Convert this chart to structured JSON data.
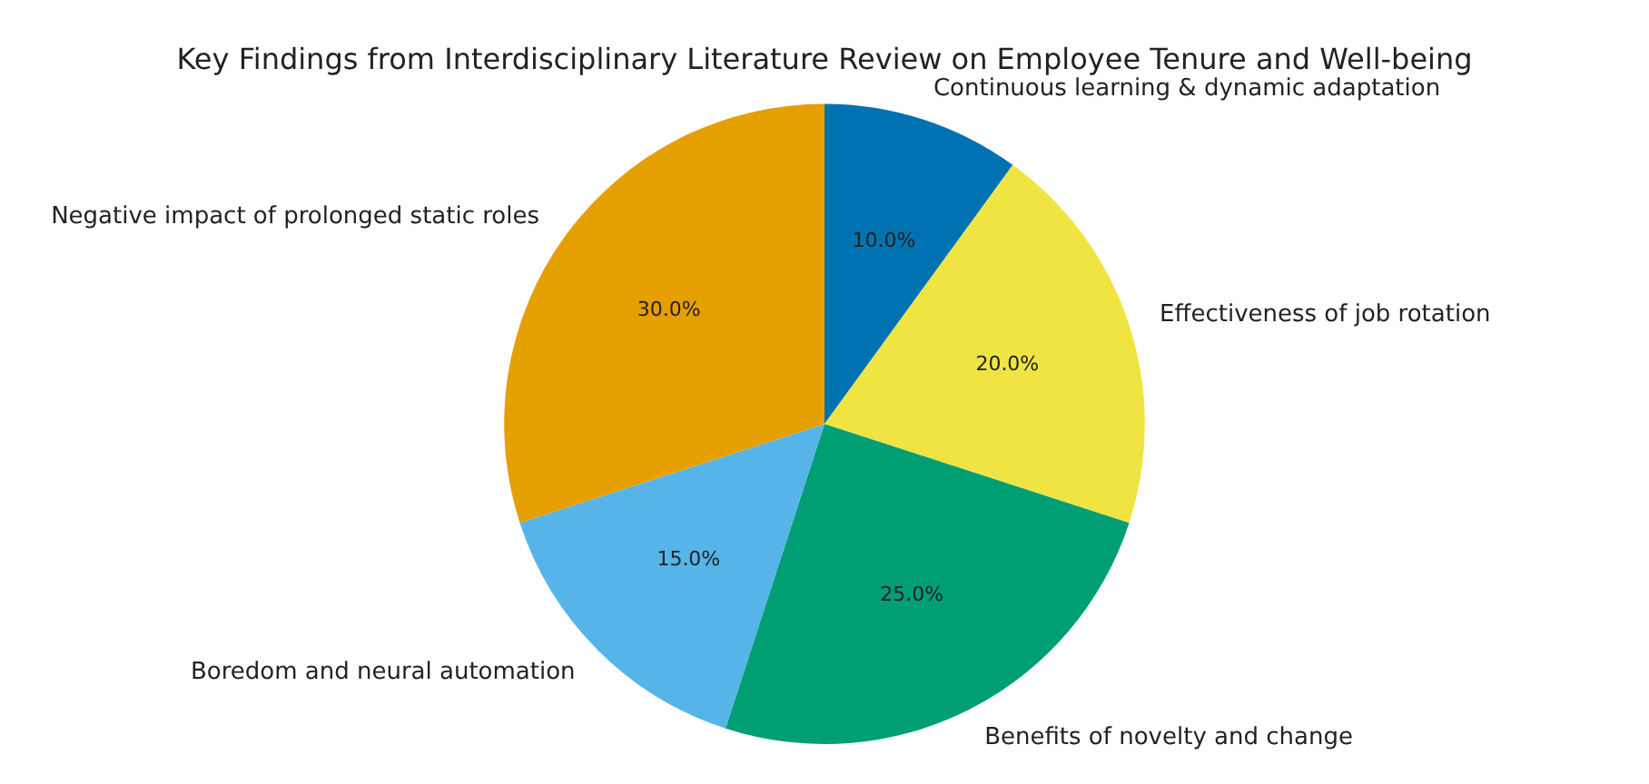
{
  "chart_data": {
    "type": "pie",
    "title": "Key Findings from Interdisciplinary Literature Review on Employee Tenure and Well-being",
    "categories": [
      "Continuous learning & dynamic adaptation",
      "Effectiveness of job rotation",
      "Benefits of novelty and change",
      "Boredom and neural automation",
      "Negative impact of prolonged static roles"
    ],
    "values": [
      10,
      20,
      25,
      15,
      30
    ],
    "colors": [
      "#0072b2",
      "#f0e442",
      "#009e73",
      "#56b4e9",
      "#e69f00"
    ],
    "value_labels": [
      "10.0%",
      "20.0%",
      "25.0%",
      "15.0%",
      "30.0%"
    ],
    "legend": false
  }
}
